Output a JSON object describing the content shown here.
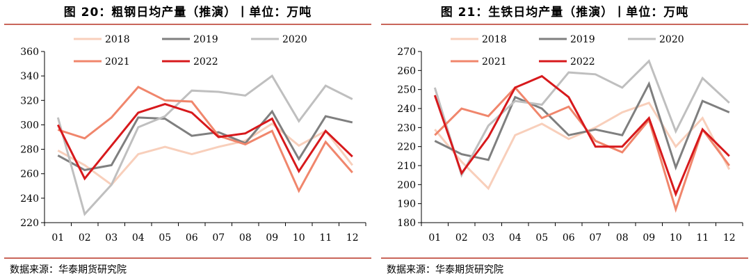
{
  "charts": [
    {
      "figure_title": "图 20：粗钢日均产量（推演）丨单位：万吨",
      "source": "数据来源：华泰期货研究院",
      "chart_data": {
        "type": "line",
        "title": "图 20：粗钢日均产量（推演）丨单位：万吨",
        "categories": [
          "01",
          "02",
          "03",
          "04",
          "05",
          "06",
          "07",
          "08",
          "09",
          "10",
          "11",
          "12"
        ],
        "ylim": [
          220,
          360
        ],
        "yticks": [
          220,
          240,
          260,
          280,
          300,
          320,
          340,
          360
        ],
        "legend_position": "top",
        "grid": false,
        "series": [
          {
            "name": "2018",
            "color": "#f8cfbb",
            "values": [
              279,
              267,
              251,
              276,
              282,
              276,
              282,
              287,
              301,
              283,
              295,
              267
            ]
          },
          {
            "name": "2019",
            "color": "#7f7f7f",
            "values": [
              275,
              263,
              267,
              306,
              305,
              291,
              294,
              285,
              311,
              272,
              307,
              302
            ]
          },
          {
            "name": "2020",
            "color": "#bfbfbf",
            "values": [
              306,
              227,
              251,
              298,
              307,
              328,
              327,
              324,
              340,
              303,
              332,
              321
            ]
          },
          {
            "name": "2021",
            "color": "#f0866c",
            "values": [
              296,
              289,
              306,
              331,
              320,
              319,
              291,
              284,
              295,
              246,
              286,
              261
            ]
          },
          {
            "name": "2022",
            "color": "#d7191c",
            "values": [
              300,
              256,
              283,
              310,
              317,
              310,
              290,
              293,
              305,
              262,
              295,
              274
            ]
          }
        ]
      }
    },
    {
      "figure_title": "图 21：生铁日均产量（推演）丨单位：万吨",
      "source": "数据来源：华泰期货研究院",
      "chart_data": {
        "type": "line",
        "title": "图 21：生铁日均产量（推演）丨单位：万吨",
        "categories": [
          "01",
          "02",
          "03",
          "04",
          "05",
          "06",
          "07",
          "08",
          "09",
          "10",
          "11",
          "12"
        ],
        "ylim": [
          180,
          270
        ],
        "yticks": [
          180,
          190,
          200,
          210,
          220,
          230,
          240,
          250,
          260,
          270
        ],
        "legend_position": "top",
        "grid": false,
        "series": [
          {
            "name": "2018",
            "color": "#f8cfbb",
            "values": [
              229,
              212,
              198,
              226,
              232,
              224,
              230,
              238,
              243,
              220,
              235,
              208
            ]
          },
          {
            "name": "2019",
            "color": "#7f7f7f",
            "values": [
              223,
              216,
              213,
              246,
              240,
              226,
              229,
              226,
              253,
              209,
              244,
              238
            ]
          },
          {
            "name": "2020",
            "color": "#bfbfbf",
            "values": [
              251,
              205,
              231,
              244,
              242,
              259,
              258,
              251,
              265,
              228,
              256,
              243
            ]
          },
          {
            "name": "2021",
            "color": "#f0866c",
            "values": [
              226,
              240,
              236,
              251,
              235,
              241,
              223,
              217,
              234,
              187,
              229,
              210
            ]
          },
          {
            "name": "2022",
            "color": "#d7191c",
            "values": [
              247,
              206,
              225,
              251,
              257,
              246,
              220,
              220,
              235,
              195,
              229,
              215
            ]
          }
        ]
      }
    }
  ]
}
